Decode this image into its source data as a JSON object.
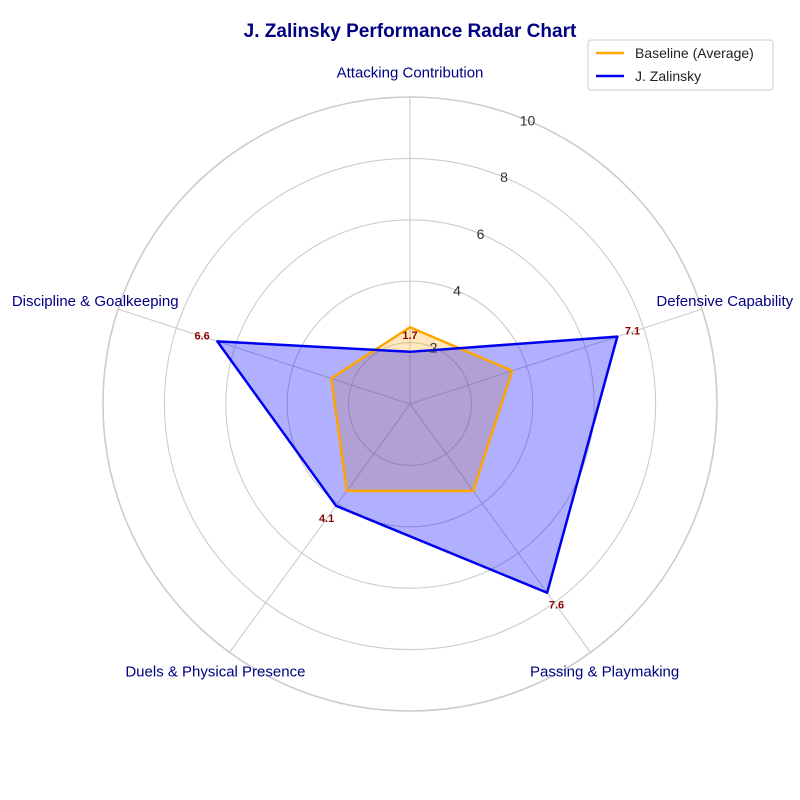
{
  "chart_data": {
    "type": "radar",
    "title": "J. Zalinsky Performance Radar Chart",
    "categories": [
      "Attacking Contribution",
      "Defensive Capability",
      "Passing & Playmaking",
      "Duels & Physical Presence",
      "Discipline & Goalkeeping"
    ],
    "rlim": [
      0,
      10
    ],
    "rticks": [
      "2",
      "4",
      "6",
      "8",
      "10"
    ],
    "grid": true,
    "legend_position": "top-right",
    "series": [
      {
        "name": "Baseline (Average)",
        "values": [
          2.5,
          3.5,
          3.5,
          3.5,
          2.7
        ],
        "color": "#FFA500",
        "fill": "#FFA500",
        "show_labels": false
      },
      {
        "name": "J. Zalinsky",
        "values": [
          1.7,
          7.1,
          7.6,
          4.1,
          6.6
        ],
        "data_labels": [
          "1.7",
          "7.1",
          "7.6",
          "4.1",
          "6.6"
        ],
        "color": "#0000EE",
        "fill": "#0000FF",
        "show_labels": true
      }
    ],
    "colors": {
      "title": "#000080",
      "axis_label": "#000080",
      "data_label": "#8B0000",
      "grid": "#cccccc"
    }
  }
}
